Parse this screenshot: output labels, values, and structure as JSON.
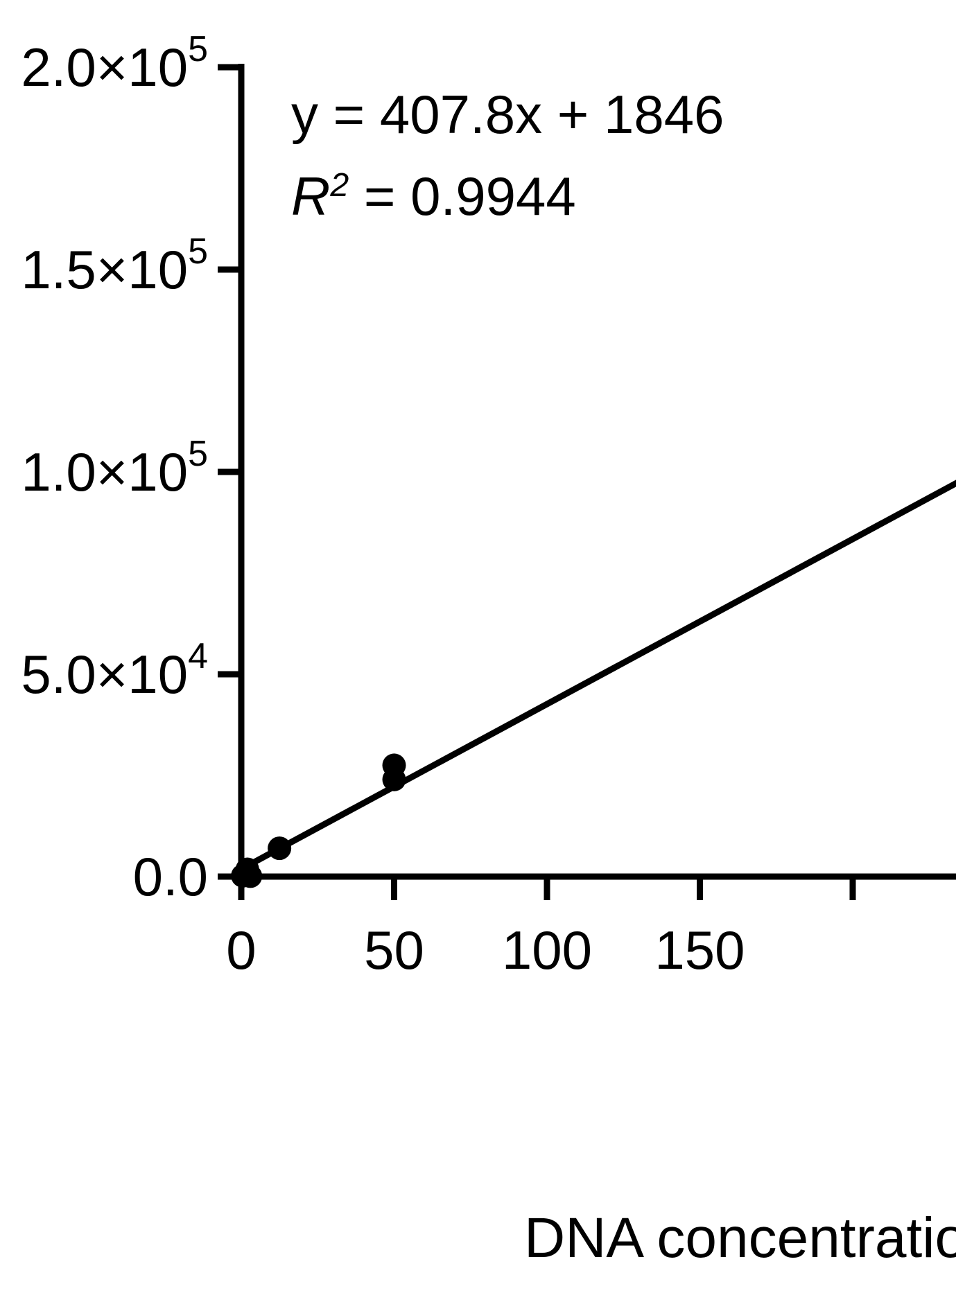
{
  "chart_data": {
    "type": "scatter",
    "title": "",
    "xlabel": "DNA concentration",
    "ylabel": "",
    "annotation": {
      "equation": "y = 407.8x + 1846",
      "r_base": "R",
      "r_exp": "2",
      "r_value": " = 0.9944"
    },
    "axes": {
      "xlim": [
        0,
        234
      ],
      "ylim": [
        0,
        200000
      ],
      "grid": false,
      "x_ticks": [
        {
          "value": 0,
          "label": "0"
        },
        {
          "value": 50,
          "label": "50"
        },
        {
          "value": 100,
          "label": "100"
        },
        {
          "value": 150,
          "label": "150"
        },
        {
          "value": 200,
          "label": ""
        }
      ],
      "y_ticks": [
        {
          "value": 200000,
          "mantissa": "2.0×10",
          "exp": "5"
        },
        {
          "value": 150000,
          "mantissa": "1.5×10",
          "exp": "5"
        },
        {
          "value": 100000,
          "mantissa": "1.0×10",
          "exp": "5"
        },
        {
          "value": 50000,
          "mantissa": "5.0×10",
          "exp": "4"
        },
        {
          "value": 0,
          "mantissa": "0.0",
          "exp": ""
        }
      ]
    },
    "points": [
      {
        "x": 0.5,
        "y": 200
      },
      {
        "x": 2,
        "y": 1800
      },
      {
        "x": 3,
        "y": 100
      },
      {
        "x": 12.5,
        "y": 7000
      },
      {
        "x": 50,
        "y": 24000
      },
      {
        "x": 50,
        "y": 27500
      }
    ],
    "fit_line": {
      "slope": 407.8,
      "intercept": 1846,
      "x_start": 0,
      "x_end": 245
    },
    "colors": {
      "ink": "#000000",
      "background": "#ffffff"
    }
  }
}
